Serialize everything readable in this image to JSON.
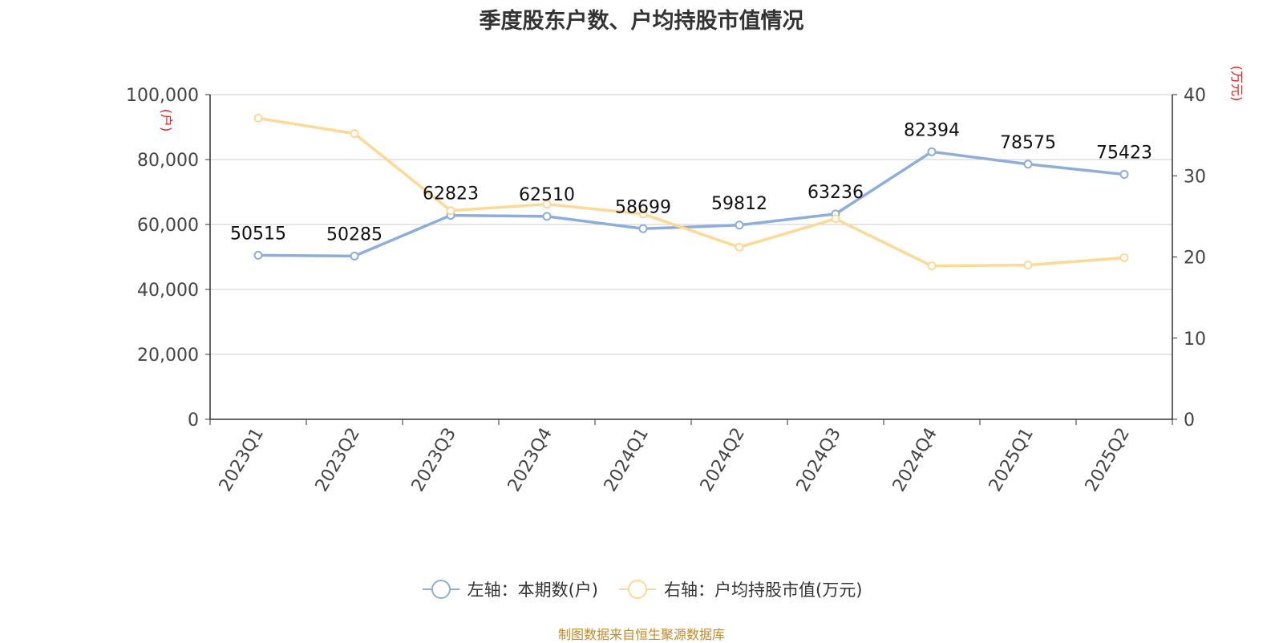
{
  "title": "季度股东户数、户均持股市值情况",
  "source": "制图数据来自恒生聚源数据库",
  "chart_data": {
    "type": "line",
    "title": "季度股东户数、户均持股市值情况",
    "categories": [
      "2023Q1",
      "2023Q2",
      "2023Q3",
      "2023Q4",
      "2024Q1",
      "2024Q2",
      "2024Q3",
      "2024Q4",
      "2025Q1",
      "2025Q2"
    ],
    "left_axis": {
      "unit_label": "(户)",
      "ylim": [
        0,
        100000
      ],
      "ticks": [
        0,
        20000,
        40000,
        60000,
        80000,
        100000
      ],
      "tick_labels": [
        "0",
        "20,000",
        "40,000",
        "60,000",
        "80,000",
        "100,000"
      ]
    },
    "right_axis": {
      "unit_label": "(万元)",
      "ylim": [
        0,
        40
      ],
      "ticks": [
        0,
        10,
        20,
        30,
        40
      ],
      "tick_labels": [
        "0",
        "10",
        "20",
        "30",
        "40"
      ]
    },
    "grid": true,
    "legend_position": "bottom-center",
    "series": [
      {
        "name": "左轴：本期数(户)",
        "axis": "left",
        "color": "#8fadd9",
        "values": [
          50515,
          50285,
          62823,
          62510,
          58699,
          59812,
          63236,
          82394,
          78575,
          75423
        ],
        "data_labels": [
          "50515",
          "50285",
          "62823",
          "62510",
          "58699",
          "59812",
          "63236",
          "82394",
          "78575",
          "75423"
        ]
      },
      {
        "name": "右轴：户均持股市值(万元)",
        "axis": "right",
        "color": "#fcd996",
        "values": [
          37.1,
          35.2,
          25.7,
          26.5,
          25.3,
          21.2,
          24.7,
          18.9,
          19.0,
          19.9
        ]
      }
    ]
  }
}
